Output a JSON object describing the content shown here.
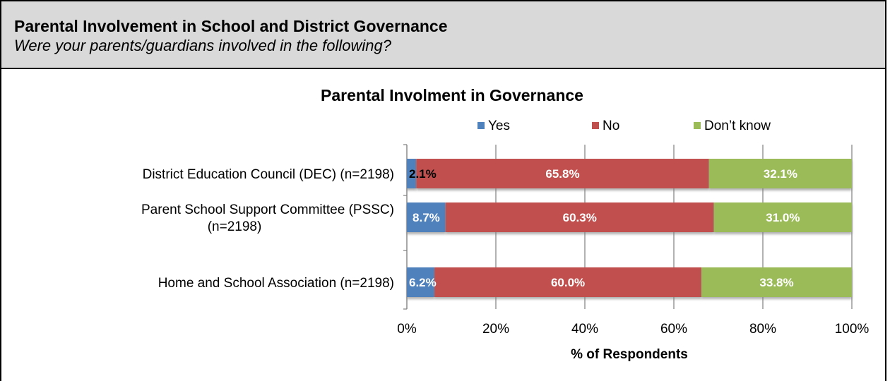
{
  "section": {
    "title": "Parental Involvement in School and District Governance",
    "subtitle": "Were your parents/guardians involved in the following?"
  },
  "chart_data": {
    "type": "bar",
    "orientation": "horizontal",
    "stacked": true,
    "title": "Parental Involment in Governance",
    "xlabel": "% of Respondents",
    "ylabel": "",
    "xlim": [
      0,
      100
    ],
    "xticks": [
      "0%",
      "20%",
      "40%",
      "60%",
      "80%",
      "100%"
    ],
    "legend_position": "top",
    "categories": [
      [
        "District Education Council (DEC)  (n=2198)"
      ],
      [
        "Parent School Support Committee (PSSC)",
        "(n=2198)"
      ],
      [
        "Home and School Association  (n=2198)"
      ]
    ],
    "series": [
      {
        "name": "Yes",
        "color": "#4f81bd",
        "values": [
          2.1,
          8.7,
          6.2
        ],
        "labels": [
          "2.1%",
          "8.7%",
          "6.2%"
        ],
        "label_color": [
          "#000000",
          "#ffffff",
          "#ffffff"
        ]
      },
      {
        "name": "No",
        "color": "#c0504d",
        "values": [
          65.8,
          60.3,
          60.0
        ],
        "labels": [
          "65.8%",
          "60.3%",
          "60.0%"
        ],
        "label_color": [
          "#ffffff",
          "#ffffff",
          "#ffffff"
        ]
      },
      {
        "name": "Don’t know",
        "color": "#9bbb59",
        "values": [
          32.1,
          31.0,
          33.8
        ],
        "labels": [
          "32.1%",
          "31.0%",
          "33.8%"
        ],
        "label_color": [
          "#ffffff",
          "#ffffff",
          "#ffffff"
        ]
      }
    ]
  }
}
